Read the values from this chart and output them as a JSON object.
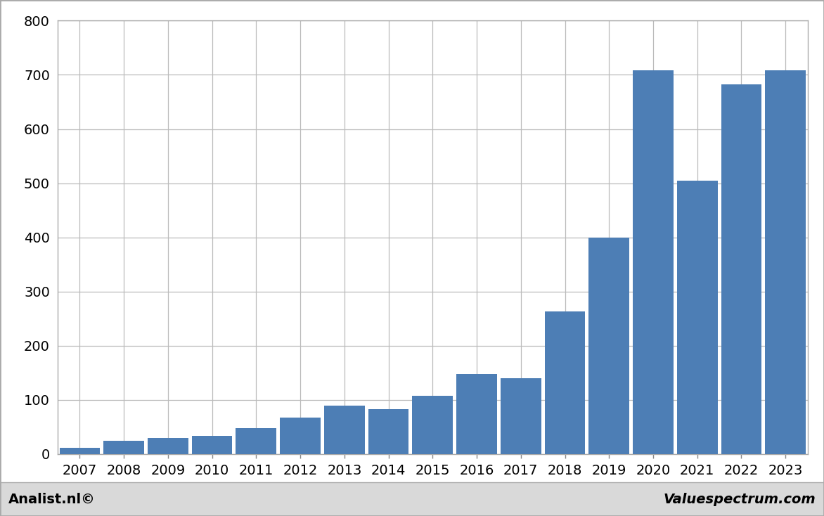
{
  "categories": [
    "2007",
    "2008",
    "2009",
    "2010",
    "2011",
    "2012",
    "2013",
    "2014",
    "2015",
    "2016",
    "2017",
    "2018",
    "2019",
    "2020",
    "2021",
    "2022",
    "2023"
  ],
  "values": [
    12,
    25,
    30,
    33,
    48,
    67,
    90,
    83,
    108,
    148,
    140,
    263,
    400,
    708,
    505,
    683,
    708
  ],
  "bar_color": "#4d7eb5",
  "ylim": [
    0,
    800
  ],
  "yticks": [
    0,
    100,
    200,
    300,
    400,
    500,
    600,
    700,
    800
  ],
  "background_color": "#ffffff",
  "plot_bg_color": "#ffffff",
  "footer_bg_color": "#d9d9d9",
  "grid_color": "#bbbbbb",
  "border_color": "#aaaaaa",
  "footer_left": "Analist.nl©",
  "footer_right": "Valuespectrum.com",
  "footer_fontsize": 14,
  "bar_width": 0.92,
  "tick_label_fontsize": 14,
  "ytick_label_fontsize": 14
}
